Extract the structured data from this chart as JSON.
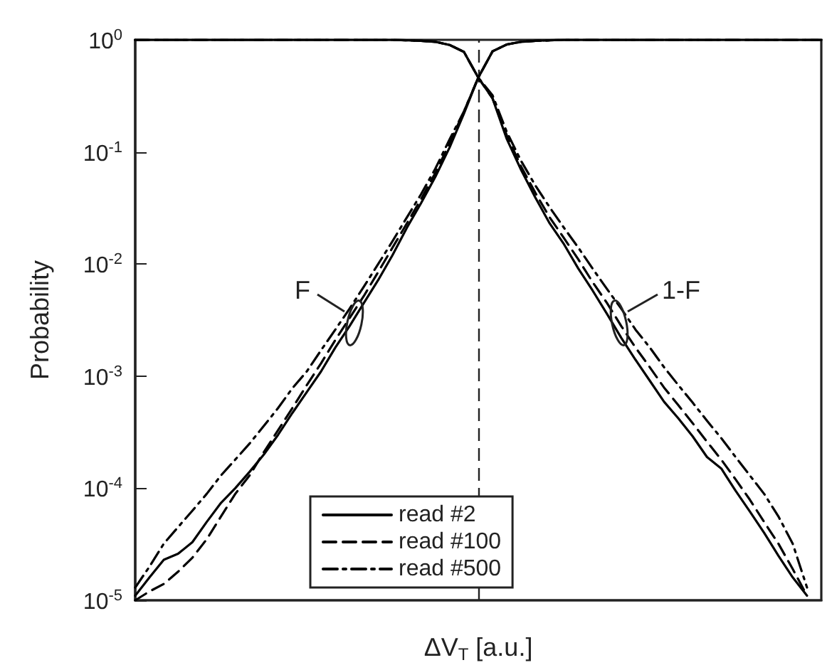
{
  "chart_data": {
    "type": "line",
    "xlabel": "ΔV$_{T}$ [a.u.]",
    "ylabel": "Probability",
    "categories": [
      null,
      null,
      null,
      null,
      null,
      null,
      null,
      null,
      null,
      null,
      null,
      null,
      null,
      null,
      null,
      null,
      null,
      null,
      null,
      null,
      null,
      null,
      null,
      null,
      null,
      null,
      null,
      null,
      null,
      null,
      null,
      null,
      null,
      null,
      null,
      null,
      null,
      null,
      null,
      null,
      null,
      null,
      null,
      null,
      null,
      null,
      null,
      null,
      null
    ],
    "log": "y",
    "ylim": [
      1e-05,
      1
    ],
    "yticks": [
      {
        "value": 1e-05,
        "label": "10$^{-5}$"
      },
      {
        "value": 0.0001,
        "label": "10$^{-4}$"
      },
      {
        "value": 0.001,
        "label": "10$^{-3}$"
      },
      {
        "value": 0.01,
        "label": "10$^{-2}$"
      },
      {
        "value": 0.1,
        "label": "10$^{-1}$"
      },
      {
        "value": 1,
        "label": "10$^{0}$"
      }
    ],
    "tick_labels": "y",
    "grid": false,
    "legend": "bottom",
    "marker": "none",
    "annotations": [
      "F",
      "1-F"
    ],
    "series": [
      {
        "name": "read #2",
        "color": "#000000",
        "line_style": "solid",
        "values": [
          1.1e-05,
          1.6e-05,
          2.3e-05,
          2.6e-05,
          3.3e-05,
          5e-05,
          7.4e-05,
          0.0001,
          0.00014,
          0.0002,
          0.0003,
          0.00047,
          0.00072,
          0.0011,
          0.0018,
          0.0028,
          0.0045,
          0.0072,
          0.012,
          0.021,
          0.035,
          0.06,
          0.11,
          0.22,
          0.46,
          0.79,
          0.91,
          0.96,
          0.98,
          0.99,
          1,
          1,
          1,
          1,
          1,
          1,
          1,
          1,
          1,
          1,
          1,
          1,
          1,
          1,
          1,
          1,
          1,
          1,
          1
        ]
      },
      {
        "name": "read #100",
        "color": "#000000",
        "line_style": "dashed",
        "values": [
          1e-05,
          1.2e-05,
          1.4e-05,
          1.8e-05,
          2.4e-05,
          3.5e-05,
          5.6e-05,
          8.9e-05,
          0.00013,
          0.00021,
          0.00033,
          0.00052,
          0.00083,
          0.0013,
          0.0021,
          0.0033,
          0.0052,
          0.0085,
          0.014,
          0.023,
          0.038,
          0.065,
          0.12,
          0.23,
          0.46,
          0.79,
          0.91,
          0.96,
          0.98,
          0.99,
          1,
          1,
          1,
          1,
          1,
          1,
          1,
          1,
          1,
          1,
          1,
          1,
          1,
          1,
          1,
          1,
          1,
          1,
          1
        ]
      },
      {
        "name": "read #500",
        "color": "#000000",
        "line_style": "dashdot",
        "values": [
          1.3e-05,
          2e-05,
          3.2e-05,
          4.5e-05,
          6.3e-05,
          8.9e-05,
          0.00013,
          0.00018,
          0.00025,
          0.00036,
          0.00052,
          0.00078,
          0.0011,
          0.0017,
          0.0026,
          0.004,
          0.0063,
          0.01,
          0.016,
          0.026,
          0.042,
          0.071,
          0.13,
          0.23,
          0.46,
          0.79,
          0.91,
          0.96,
          0.98,
          0.99,
          1,
          1,
          1,
          1,
          1,
          1,
          1,
          1,
          1,
          1,
          1,
          1,
          1,
          1,
          1,
          1,
          1,
          1,
          1
        ]
      },
      {
        "color": "#000000",
        "line_style": "solid",
        "values": [
          1,
          1,
          1,
          1,
          1,
          1,
          1,
          1,
          1,
          1,
          1,
          1,
          1,
          1,
          1,
          1,
          1,
          1,
          1,
          0.99,
          0.98,
          0.96,
          0.9,
          0.78,
          0.46,
          0.3,
          0.13,
          0.069,
          0.039,
          0.023,
          0.015,
          0.0091,
          0.0058,
          0.0036,
          0.0022,
          0.0014,
          0.00091,
          0.00059,
          0.00042,
          0.00029,
          0.00019,
          0.00015,
          9.5e-05,
          6.2e-05,
          4e-05,
          2.5e-05,
          1.6e-05,
          1.1e-05,
          null
        ]
      },
      {
        "color": "#000000",
        "line_style": "dashed",
        "values": [
          1,
          1,
          1,
          1,
          1,
          1,
          1,
          1,
          1,
          1,
          1,
          1,
          1,
          1,
          1,
          1,
          1,
          1,
          1,
          0.99,
          0.98,
          0.96,
          0.9,
          0.78,
          0.46,
          0.3,
          0.14,
          0.074,
          0.043,
          0.026,
          0.017,
          0.011,
          0.0069,
          0.0045,
          0.0028,
          0.0018,
          0.0012,
          0.00079,
          0.00055,
          0.00038,
          0.00026,
          0.00018,
          0.00012,
          7.9e-05,
          5e-05,
          3.2e-05,
          1.9e-05,
          1.1e-05,
          null
        ]
      },
      {
        "color": "#000000",
        "line_style": "dashdot",
        "values": [
          1,
          1,
          1,
          1,
          1,
          1,
          1,
          1,
          1,
          1,
          1,
          1,
          1,
          1,
          1,
          1,
          1,
          1,
          1,
          0.99,
          0.98,
          0.96,
          0.9,
          0.78,
          0.46,
          0.32,
          0.15,
          0.083,
          0.05,
          0.032,
          0.021,
          0.014,
          0.0091,
          0.006,
          0.004,
          0.0026,
          0.0018,
          0.0012,
          0.00083,
          0.00058,
          0.0004,
          0.00028,
          0.00019,
          0.00013,
          8.9e-05,
          5.6e-05,
          3.2e-05,
          1.3e-05,
          null
        ]
      }
    ]
  }
}
